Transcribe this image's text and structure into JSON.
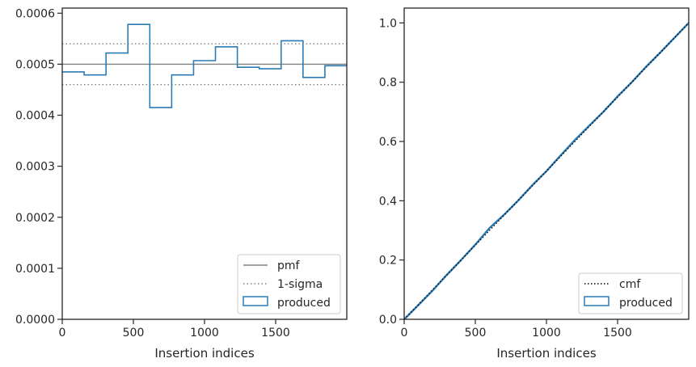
{
  "chart_data": [
    {
      "type": "step",
      "xlabel": "Insertion indices",
      "ylabel": "",
      "xlim": [
        0,
        2000
      ],
      "ylim": [
        0,
        0.00061
      ],
      "xticks": [
        0,
        500,
        1000,
        1500
      ],
      "xtick_labels": [
        "0",
        "500",
        "1000",
        "1500"
      ],
      "yticks": [
        0,
        0.0001,
        0.0002,
        0.0003,
        0.0004,
        0.0005,
        0.0006
      ],
      "ytick_labels": [
        "0.0000",
        "0.0001",
        "0.0002",
        "0.0003",
        "0.0004",
        "0.0005",
        "0.0006"
      ],
      "bin_edges": [
        0,
        153.8,
        307.7,
        461.5,
        615.4,
        769.2,
        923.1,
        1076.9,
        1230.8,
        1384.6,
        1538.5,
        1692.3,
        1846.2,
        2000
      ],
      "series": [
        {
          "name": "pmf",
          "style": "solid",
          "color": "#808080",
          "value": 0.0005
        },
        {
          "name": "1-sigma",
          "style": "dotted",
          "color": "#808080",
          "values": [
            0.00046,
            0.00054
          ]
        },
        {
          "name": "produced",
          "style": "step",
          "color": "#2b7bb5",
          "values": [
            0.000485,
            0.000479,
            0.000522,
            0.000578,
            0.000415,
            0.000479,
            0.000507,
            0.000534,
            0.000494,
            0.000491,
            0.000546,
            0.000474,
            0.000497
          ]
        }
      ],
      "legend": "lower-right",
      "grid": false
    },
    {
      "type": "line",
      "xlabel": "Insertion indices",
      "ylabel": "",
      "xlim": [
        0,
        2000
      ],
      "ylim": [
        0,
        1.05
      ],
      "xticks": [
        0,
        500,
        1000,
        1500
      ],
      "xtick_labels": [
        "0",
        "500",
        "1000",
        "1500"
      ],
      "yticks": [
        0,
        0.2,
        0.4,
        0.6,
        0.8,
        1.0
      ],
      "ytick_labels": [
        "0.0",
        "0.2",
        "0.4",
        "0.6",
        "0.8",
        "1.0"
      ],
      "series": [
        {
          "name": "cmf",
          "style": "dotted",
          "color": "#000000",
          "x": [
            0,
            2000
          ],
          "y": [
            0,
            1.0
          ]
        },
        {
          "name": "produced",
          "style": "step",
          "color": "#2b7bb5",
          "x": [
            0,
            100,
            200,
            300,
            400,
            500,
            600,
            700,
            800,
            900,
            1000,
            1100,
            1200,
            1300,
            1400,
            1500,
            1600,
            1700,
            1800,
            1900,
            2000
          ],
          "y": [
            0,
            0.048,
            0.097,
            0.15,
            0.2,
            0.252,
            0.308,
            0.352,
            0.4,
            0.452,
            0.5,
            0.553,
            0.605,
            0.653,
            0.7,
            0.752,
            0.8,
            0.852,
            0.9,
            0.95,
            1.0
          ]
        }
      ],
      "legend": "lower-right",
      "grid": false
    }
  ]
}
